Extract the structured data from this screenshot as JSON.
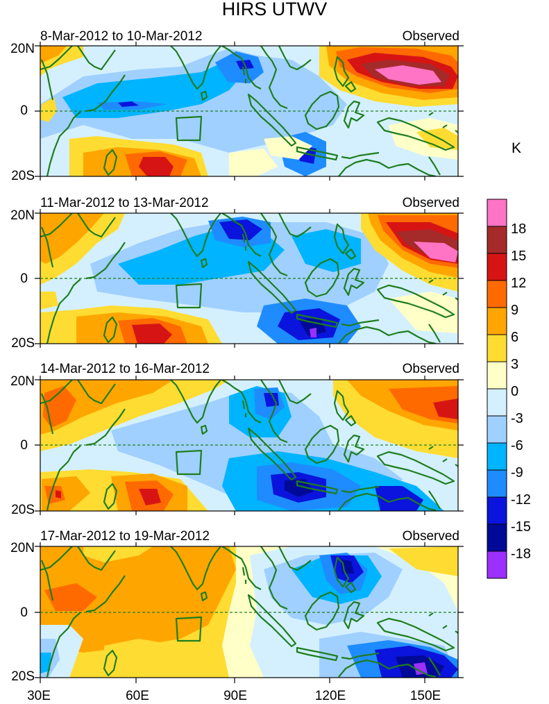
{
  "title": "HIRS UTWV",
  "panels": [
    {
      "dates": "8-Mar-2012 to 10-Mar-2012",
      "label": "Observed"
    },
    {
      "dates": "11-Mar-2012 to 13-Mar-2012",
      "label": "Observed"
    },
    {
      "dates": "14-Mar-2012 to 16-Mar-2012",
      "label": "Observed"
    },
    {
      "dates": "17-Mar-2012 to 19-Mar-2012",
      "label": "Observed"
    }
  ],
  "lat_labels": [
    "20N",
    "0",
    "20S"
  ],
  "lon_labels": [
    "30E",
    "60E",
    "90E",
    "120E",
    "150E"
  ],
  "colorbar": {
    "unit": "K",
    "labels": [
      "18",
      "15",
      "12",
      "9",
      "6",
      "3",
      "0",
      "-3",
      "-6",
      "-9",
      "-12",
      "-15",
      "-18"
    ],
    "colors": [
      "#ff74c4",
      "#a52a2a",
      "#d71414",
      "#ff6a00",
      "#ffa500",
      "#ffdc32",
      "#ffffc8",
      "#d4f0ff",
      "#a0d0ff",
      "#00b4ff",
      "#1e8cff",
      "#0a14dc",
      "#000a96",
      "#9b30ff"
    ]
  }
}
